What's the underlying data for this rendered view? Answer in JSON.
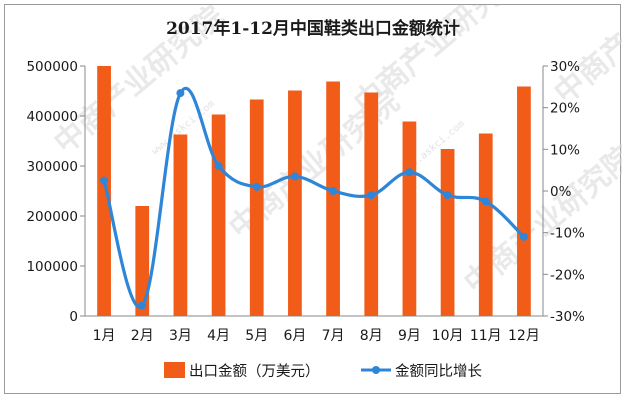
{
  "chart_data": {
    "type": "bar",
    "title": "2017年1-12月中国鞋类出口金额统计",
    "categories": [
      "1月",
      "2月",
      "3月",
      "4月",
      "5月",
      "6月",
      "7月",
      "8月",
      "9月",
      "10月",
      "11月",
      "12月"
    ],
    "series": [
      {
        "name": "出口金额（万美元）",
        "type": "bar",
        "axis": "left",
        "color": "#f25c19",
        "values": [
          500000,
          220000,
          363000,
          403000,
          433000,
          451000,
          469000,
          447000,
          389000,
          334000,
          365000,
          459000
        ]
      },
      {
        "name": "金额同比增长",
        "type": "line",
        "axis": "right",
        "color": "#2e86d8",
        "values": [
          2.5,
          -27.5,
          23.5,
          6.0,
          1.0,
          3.5,
          0.0,
          -1.0,
          4.5,
          -1.0,
          -2.5,
          -11.0
        ]
      }
    ],
    "y_left": {
      "ylim": [
        0,
        500000
      ],
      "ticks": [
        "0",
        "100000",
        "200000",
        "300000",
        "400000",
        "500000"
      ]
    },
    "y_right": {
      "ylim": [
        -30,
        30
      ],
      "ticks": [
        "30%",
        "20%",
        "10%",
        "0%",
        "-10%",
        "-20%",
        "-30%"
      ]
    },
    "grid": false,
    "legend_position": "bottom"
  },
  "watermark": {
    "text": "中商产业研究院",
    "url": "www.askci.com"
  }
}
